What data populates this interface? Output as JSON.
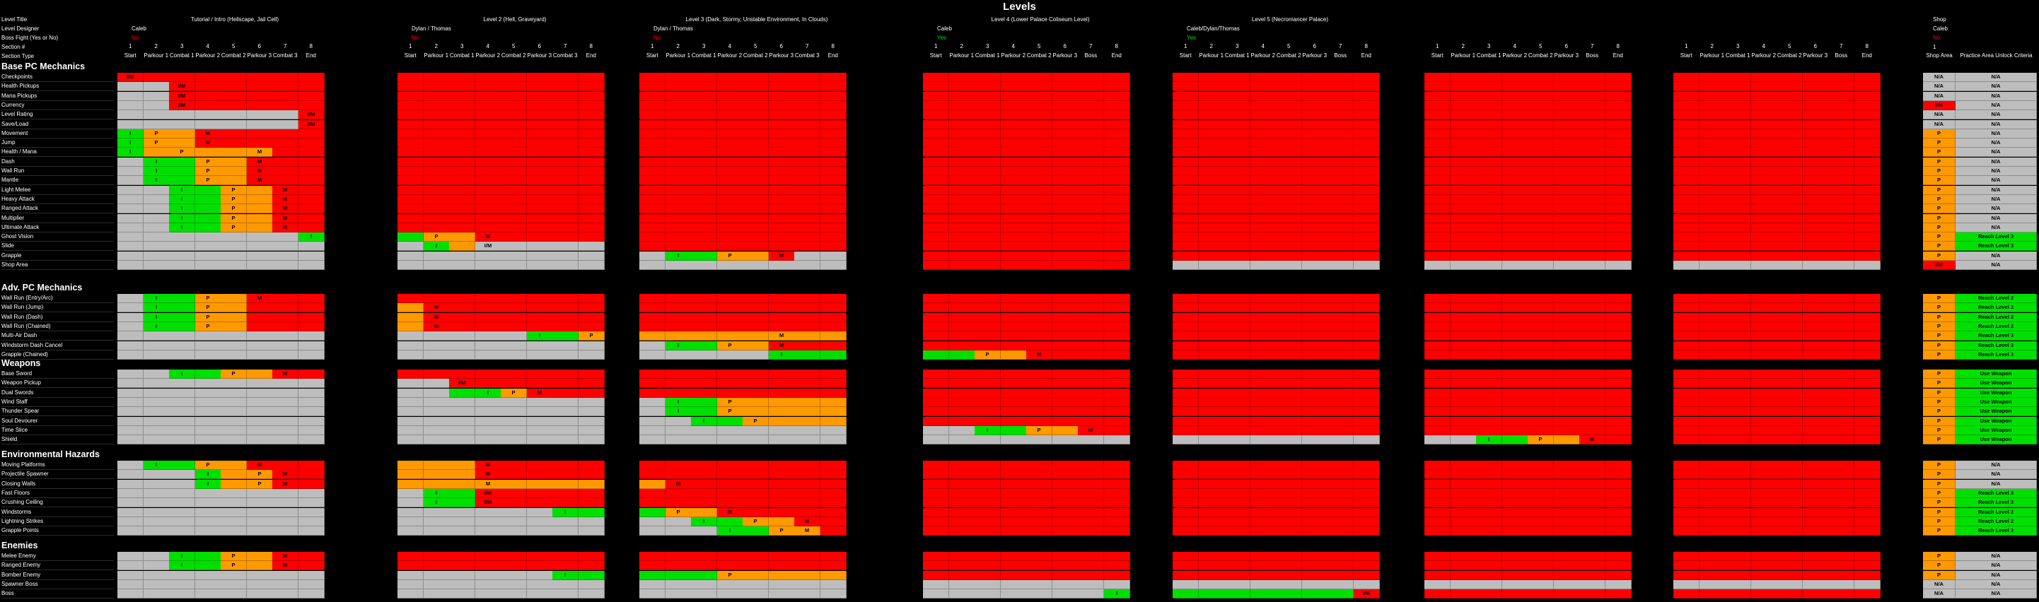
{
  "title": "Levels",
  "meta_labels": [
    "Level Title",
    "Level Designer",
    "Boss Fight (Yes or No)",
    "Section #",
    "Section Type"
  ],
  "colors": {
    "red": "#ff0000",
    "green": "#00e000",
    "orange": "#ff9900",
    "gray": "#bdbdbd",
    "yes": "#00e000",
    "no": "#ff0000"
  },
  "levels": [
    {
      "title": "Tutorial / Intro (Hellscape, Jail Cell)",
      "designer": "Caleb",
      "boss": "No",
      "nums": [
        "1",
        "2",
        "3",
        "4",
        "5",
        "6",
        "7",
        "8"
      ],
      "types": [
        "Start",
        "Parkour 1",
        "Combat 1",
        "Parkour 2",
        "Combat 2",
        "Parkour 3",
        "Combat 3",
        "End"
      ]
    },
    {
      "title": "Level 2 (Hell, Graveyard)",
      "designer": "Dylan / Thomas",
      "boss": "No",
      "nums": [
        "1",
        "2",
        "3",
        "4",
        "5",
        "6",
        "7",
        "8"
      ],
      "types": [
        "Start",
        "Parkour 1",
        "Combat 1",
        "Parkour 2",
        "Combat 2",
        "Parkour 3",
        "Combat 3",
        "End"
      ]
    },
    {
      "title": "Level 3 (Dark, Stormy, Unstable Environment, In Clouds)",
      "designer": "Dylan / Thomas",
      "boss": "No",
      "nums": [
        "1",
        "2",
        "3",
        "4",
        "5",
        "6",
        "7",
        "8"
      ],
      "types": [
        "Start",
        "Parkour 1",
        "Combat 1",
        "Parkour 2",
        "Combat 2",
        "Parkour 3",
        "Combat 3",
        "End"
      ]
    },
    {
      "title": "Level 4 (Lower Palace Coliseum Level)",
      "designer": "Caleb",
      "boss": "Yes",
      "nums": [
        "1",
        "2",
        "3",
        "4",
        "5",
        "6",
        "7",
        "8"
      ],
      "types": [
        "Start",
        "Parkour 1",
        "Combat 1",
        "Parkour 2",
        "Combat 2",
        "Parkour 3",
        "Boss",
        "End"
      ]
    },
    {
      "title": "Level 5 (Necromancer Palace)",
      "designer": "Caleb/Dylan/Thomas",
      "boss": "Yes",
      "nums": [
        "1",
        "2",
        "3",
        "4",
        "5",
        "6",
        "7",
        "8"
      ],
      "types": [
        "Start",
        "Parkour 1",
        "Combat 1",
        "Parkour 2",
        "Combat 2",
        "Parkour 3",
        "Boss",
        "End"
      ]
    },
    {
      "title": "",
      "designer": "",
      "boss": "",
      "nums": [
        "1",
        "2",
        "3",
        "4",
        "5",
        "6",
        "7",
        "8"
      ],
      "types": [
        "Start",
        "Parkour 1",
        "Combat 1",
        "Parkour 2",
        "Combat 2",
        "Parkour 3",
        "Boss",
        "End"
      ]
    },
    {
      "title": "",
      "designer": "",
      "boss": "",
      "nums": [
        "1",
        "2",
        "3",
        "4",
        "5",
        "6",
        "7",
        "8"
      ],
      "types": [
        "Start",
        "Parkour 1",
        "Combat 1",
        "Parkour 2",
        "Combat 2",
        "Parkour 3",
        "Boss",
        "End"
      ]
    }
  ],
  "shop": {
    "title": "Shop",
    "designer": "Caleb",
    "boss": "No",
    "num": "1",
    "col1": "Shop Area",
    "col2": "Practice Area Unlock Criteria"
  },
  "sections": [
    {
      "name": "Base PC Mechanics",
      "rows": [
        "Checkpoints",
        "Health Pickups",
        "Mana Pickups",
        "Currency",
        "Level Rating",
        "Save/Load",
        "Movement",
        "Jump",
        "Health / Mana",
        "Dash",
        "Wall Run",
        "Mantle",
        "Light Melee",
        "Heavy Attack",
        "Ranged Attack",
        "Multiplier",
        "Ultimate Attack",
        "Ghost Vision",
        "Slide",
        "Grapple",
        "Shop Area"
      ]
    },
    {
      "name": "Adv. PC Mechanics",
      "rows": [
        "Wall Run (Entry/Arc)",
        "Wall Run (Jump)",
        "Wall Run (Dash)",
        "Wall Run (Chained)",
        "Multi-Air Dash",
        "Windstorm Dash Cancel",
        "Grapple (Chained)"
      ]
    },
    {
      "name": "Weapons",
      "rows": [
        "Base Sword",
        "Weapon Pickup",
        "Dual Swords",
        "Wind Staff",
        "Thunder Spear",
        "Soul Devourer",
        "Time Slice",
        "Shield"
      ]
    },
    {
      "name": "Environmental Hazards",
      "rows": [
        "Moving Platforms",
        "Projectile Spawner",
        "Closing Walls",
        "Fast Floors",
        "Crushing Ceiling",
        "Windstorms",
        "Lightning Strikes",
        "Grapple Points"
      ]
    },
    {
      "name": "Enemies",
      "rows": [
        "Melee Enemy",
        "Ranged Enemy",
        "Bomber Enemy",
        "Spawner Boss",
        "Boss"
      ]
    }
  ],
  "markers": {
    "intro": "I",
    "practice": "P",
    "master": "M",
    "intro_master": "I/M"
  },
  "shop_rows": [
    [
      [
        "N/A",
        "N/A"
      ],
      [
        "N/A",
        "N/A"
      ],
      [
        "N/A",
        "N/A"
      ],
      [
        "I/M",
        "N/A"
      ],
      [
        "N/A",
        "N/A"
      ],
      [
        "N/A",
        "N/A"
      ],
      [
        "P",
        "N/A"
      ],
      [
        "P",
        "N/A"
      ],
      [
        "P",
        "N/A"
      ],
      [
        "P",
        "N/A"
      ],
      [
        "P",
        "N/A"
      ],
      [
        "P",
        "N/A"
      ],
      [
        "P",
        "N/A"
      ],
      [
        "P",
        "N/A"
      ],
      [
        "P",
        "N/A"
      ],
      [
        "P",
        "N/A"
      ],
      [
        "P",
        "N/A"
      ],
      [
        "P",
        "Reach Level 3"
      ],
      [
        "P",
        "Reach Level 3"
      ],
      [
        "P",
        "N/A"
      ],
      [
        "I/M",
        "N/A"
      ]
    ],
    [
      [
        "P",
        "Reach Level 2"
      ],
      [
        "P",
        "Reach Level 2"
      ],
      [
        "P",
        "Reach Level 2"
      ],
      [
        "P",
        "Reach Level 2"
      ],
      [
        "P",
        "Reach Level 3"
      ],
      [
        "P",
        "Reach Level 3"
      ],
      [
        "P",
        "Reach Level 3"
      ]
    ],
    [
      [
        "P",
        "Use Weapon"
      ],
      [
        "P",
        "Use Weapon"
      ],
      [
        "P",
        "Use Weapon"
      ],
      [
        "P",
        "Use Weapon"
      ],
      [
        "P",
        "Use Weapon"
      ],
      [
        "P",
        "Use Weapon"
      ],
      [
        "P",
        "Use Weapon"
      ],
      [
        "P",
        "Use Weapon"
      ]
    ],
    [
      [
        "P",
        "N/A"
      ],
      [
        "P",
        "N/A"
      ],
      [
        "P",
        "N/A"
      ],
      [
        "P",
        "Reach Level 3"
      ],
      [
        "P",
        "Reach Level 3"
      ],
      [
        "P",
        "Reach Level 2"
      ],
      [
        "P",
        "Reach Level 2"
      ],
      [
        "P",
        "Reach Level 3"
      ]
    ],
    [
      [
        "P",
        "N/A"
      ],
      [
        "P",
        "N/A"
      ],
      [
        "P",
        "N/A"
      ],
      [
        "N/A",
        "N/A"
      ],
      [
        "N/A",
        "N/A"
      ]
    ]
  ]
}
